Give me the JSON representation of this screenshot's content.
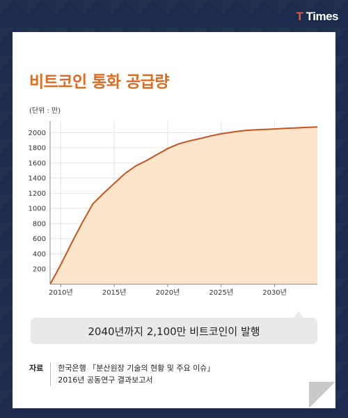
{
  "brand": {
    "logo_text_first": "T",
    "logo_text_rest": "Times"
  },
  "title": "비트코인 통화 공급량",
  "unit_label": "(단위 : 만)",
  "chart_data": {
    "type": "area",
    "title": "비트코인 통화 공급량",
    "ylabel": "(단위 : 만)",
    "x": [
      2009,
      2010,
      2011,
      2012,
      2013,
      2014,
      2015,
      2016,
      2017,
      2018,
      2019,
      2020,
      2021,
      2022,
      2023,
      2024,
      2025,
      2026,
      2027,
      2028,
      2029,
      2030,
      2031,
      2032,
      2033,
      2034
    ],
    "values": [
      0,
      260,
      540,
      810,
      1060,
      1200,
      1330,
      1460,
      1560,
      1630,
      1710,
      1790,
      1850,
      1890,
      1920,
      1955,
      1985,
      2005,
      2025,
      2035,
      2042,
      2048,
      2055,
      2062,
      2068,
      2075
    ],
    "yticks": [
      200,
      400,
      600,
      800,
      1000,
      1200,
      1400,
      1600,
      1800,
      2000
    ],
    "xticks": [
      "2010년",
      "2015년",
      "2020년",
      "2025년",
      "2030년"
    ],
    "xtick_values": [
      2010,
      2015,
      2020,
      2025,
      2030
    ],
    "ylim": [
      0,
      2150
    ],
    "xlim": [
      2009,
      2034
    ],
    "line_color": "#c8521c",
    "fill_color": "#fde5cc",
    "grid": true
  },
  "callout": "2040년까지 2,100만 비트코인이 발행",
  "source": {
    "label": "자료",
    "line1": "한국은행 「분산원장 기술의 현황 및 주요 이슈」",
    "line2": "2016년 공동연구 결과보고서"
  }
}
